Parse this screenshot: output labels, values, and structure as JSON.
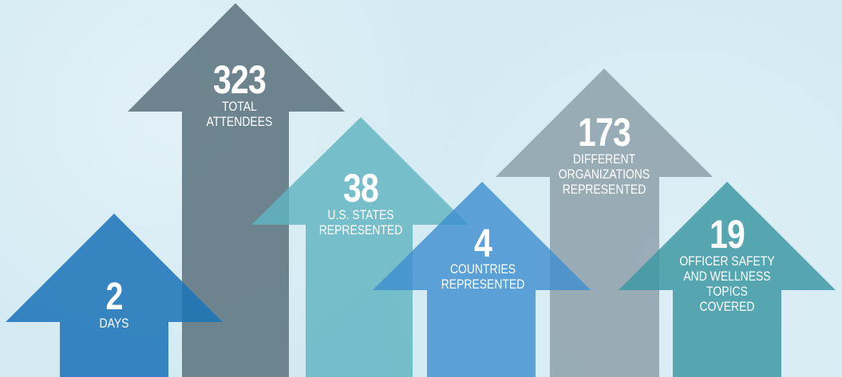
{
  "colors": {
    "background": "#d3eaf3",
    "blue_dark": "#1b73b8",
    "slate": "#5d7581",
    "teal": "#5fb3c1",
    "blue_mid": "#3f8fcf",
    "gray": "#8fa2ab",
    "teal_dark": "#3f9aa4"
  },
  "stats": [
    {
      "value": "2",
      "label": "DAYS",
      "color": "#1b73b8"
    },
    {
      "value": "323",
      "label": "TOTAL\nATTENDEES",
      "color": "#5d7581"
    },
    {
      "value": "38",
      "label": "U.S. STATES\nREPRESENTED",
      "color": "#5fb3c1"
    },
    {
      "value": "4",
      "label": "COUNTRIES\nREPRESENTED",
      "color": "#3f8fcf"
    },
    {
      "value": "173",
      "label": "DIFFERENT\nORGANIZATIONS\nREPRESENTED",
      "color": "#8fa2ab"
    },
    {
      "value": "19",
      "label": "OFFICER SAFETY\nAND WELLNESS\nTOPICS\nCOVERED",
      "color": "#3f9aa4"
    }
  ]
}
